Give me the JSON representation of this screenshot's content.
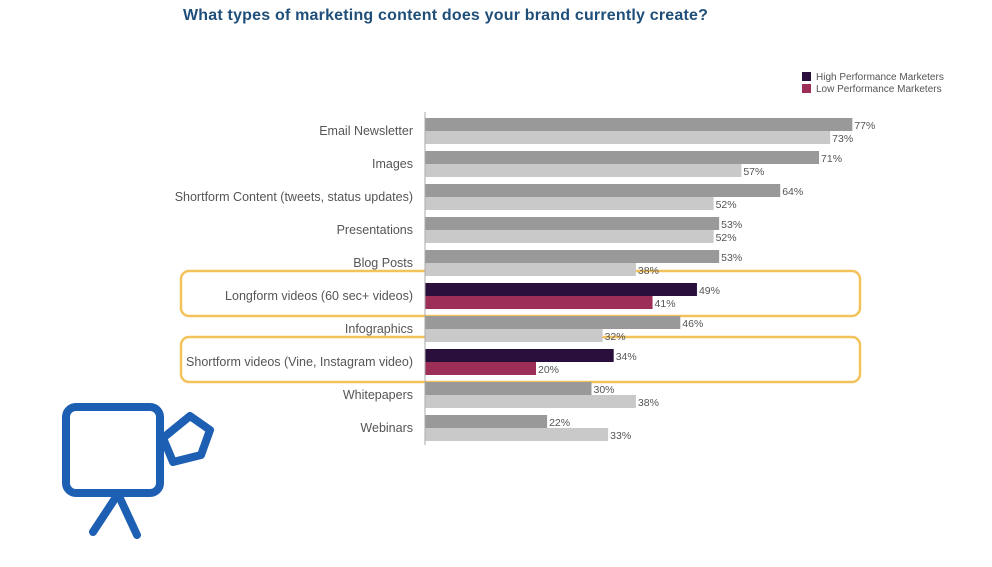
{
  "chart_data": {
    "type": "bar",
    "orientation": "horizontal",
    "title": "What types of marketing content does your brand currently create?",
    "categories": [
      "Email Newsletter",
      "Images",
      "Shortform Content (tweets, status updates)",
      "Presentations",
      "Blog Posts",
      "Longform videos (60 sec+ videos)",
      "Infographics",
      "Shortform videos (Vine, Instagram video)",
      "Whitepapers",
      "Webinars"
    ],
    "series": [
      {
        "name": "High Performance Marketers",
        "values": [
          77,
          71,
          64,
          53,
          53,
          49,
          46,
          34,
          30,
          22
        ]
      },
      {
        "name": "Low Performance Marketers",
        "values": [
          73,
          57,
          52,
          52,
          38,
          41,
          32,
          20,
          38,
          33
        ]
      }
    ],
    "value_suffix": "%",
    "highlighted_categories": [
      "Longform videos (60 sec+ videos)",
      "Shortform videos (Vine, Instagram video)"
    ],
    "legend_position": "top-right",
    "xlim": [
      0,
      100
    ],
    "grid": false
  },
  "colors": {
    "high_accent": "#2a0f3c",
    "low_accent": "#9c2e57",
    "high_default": "#999999",
    "low_default": "#c9c9c9",
    "highlight_outline": "#f4c25a",
    "title": "#1f4e79",
    "camera_icon": "#1d5fb3"
  },
  "decorations": {
    "annotation_icon": "video-camera-icon"
  }
}
